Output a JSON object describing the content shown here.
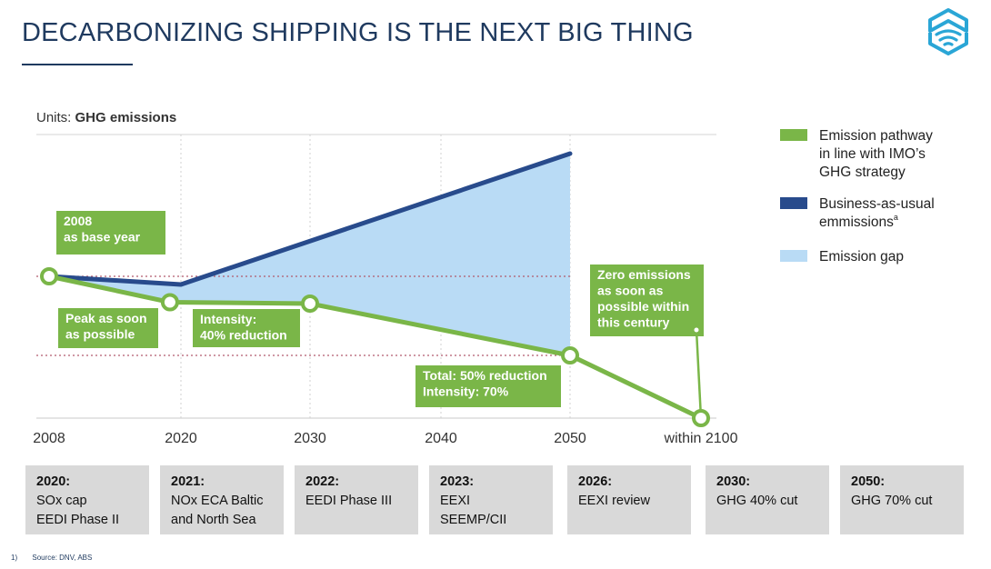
{
  "page": {
    "title": "DECARBONIZING SHIPPING IS THE NEXT BIG THING",
    "footnote_number": "1)",
    "footnote_text": "Source: DNV, ABS"
  },
  "logo": {
    "icon": "hexagon-wave-logo-icon",
    "color": "#2aa6d6"
  },
  "colors": {
    "green": "#7ab648",
    "navy": "#284b8c",
    "gap": "#b9dbf5",
    "title": "#1f3a5f",
    "dotted_line": "#b25b6e",
    "timeline_box": "#d9d9d9"
  },
  "chart_data": {
    "type": "line",
    "units_prefix": "Units: ",
    "units_label": "GHG emissions",
    "x_ticks": [
      "2008",
      "2020",
      "2030",
      "2040",
      "2050",
      "within 2100"
    ],
    "xlim": [
      2008,
      2060
    ],
    "ylim": [
      0,
      100
    ],
    "grid": "vertical dotted",
    "series": [
      {
        "name": "Emission pathway in line with IMO’s GHG strategy",
        "color": "#7ab648",
        "points": [
          [
            2008,
            52
          ],
          [
            2019,
            42.5
          ],
          [
            2030,
            42
          ],
          [
            2050,
            23
          ],
          [
            2060,
            0
          ]
        ]
      },
      {
        "name": "Business-as-usual emmissions",
        "color": "#284b8c",
        "points": [
          [
            2008,
            52
          ],
          [
            2020,
            49
          ],
          [
            2050,
            97
          ]
        ]
      }
    ],
    "gap_name": "Emission gap",
    "reference_lines": [
      52,
      23
    ],
    "annotations": [
      {
        "text": [
          "2008",
          "as base year"
        ]
      },
      {
        "text": [
          "Peak as soon",
          "as possible"
        ]
      },
      {
        "text": [
          "Intensity:",
          "40% reduction"
        ]
      },
      {
        "text": [
          "Total: 50% reduction",
          "Intensity: 70%"
        ]
      },
      {
        "text": [
          "Zero emissions",
          "as soon as",
          "possible within",
          "this century"
        ]
      }
    ],
    "legend": {
      "position": "right",
      "items": [
        {
          "lines": [
            "Emission pathway",
            "in line with IMO’s",
            "GHG strategy"
          ],
          "color": "#7ab648"
        },
        {
          "lines": [
            "Business-as-usual",
            "emmissions"
          ],
          "superscript": "a",
          "color": "#284b8c"
        },
        {
          "lines": [
            "Emission gap"
          ],
          "color": "#b9dbf5"
        }
      ]
    }
  },
  "timeline": [
    {
      "year": "2020:",
      "lines": [
        "SOx cap",
        "EEDI Phase II"
      ]
    },
    {
      "year": "2021:",
      "lines": [
        "NOx ECA Baltic",
        "and North Sea"
      ]
    },
    {
      "year": "2022:",
      "lines": [
        "EEDI Phase III"
      ]
    },
    {
      "year": "2023:",
      "lines": [
        "EEXI",
        "SEEMP/CII"
      ]
    },
    {
      "year": "2026:",
      "lines": [
        "EEXI review"
      ]
    },
    {
      "year": "2030:",
      "lines": [
        "GHG 40% cut"
      ]
    },
    {
      "year": "2050:",
      "lines": [
        "GHG 70% cut"
      ]
    }
  ]
}
